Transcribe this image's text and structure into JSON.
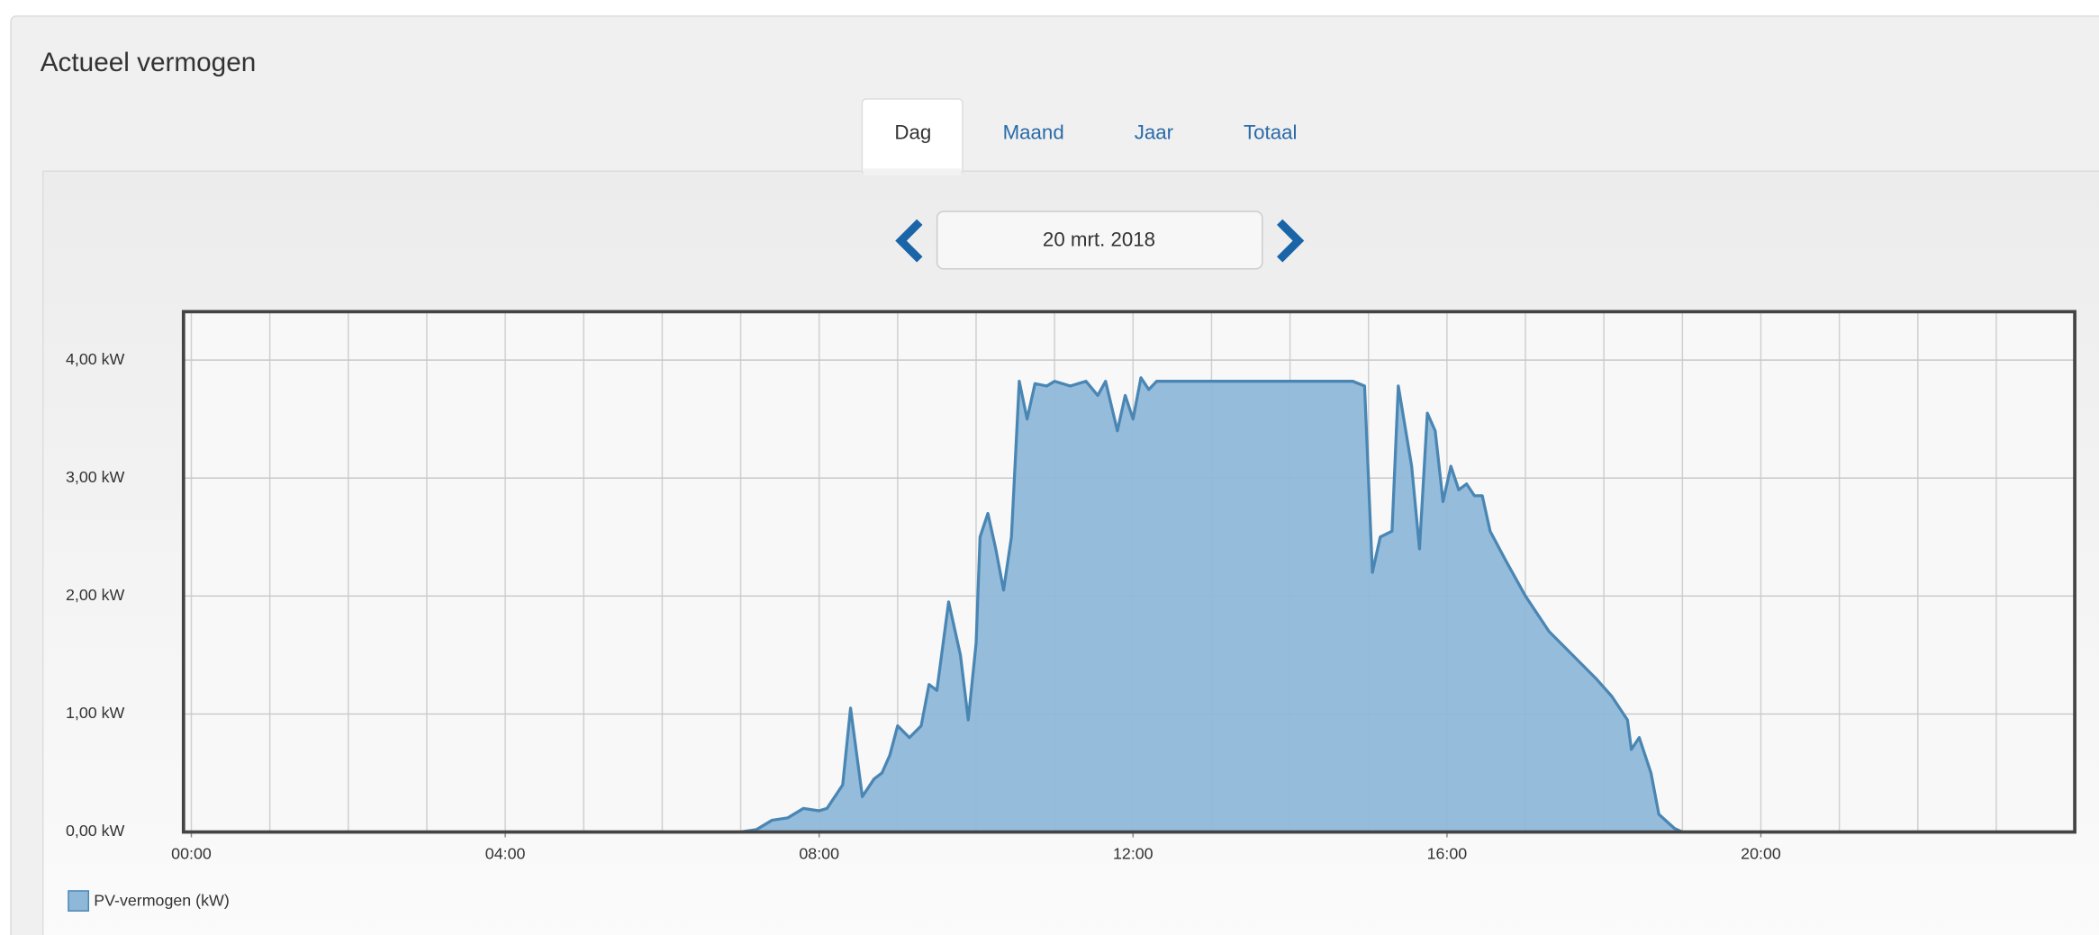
{
  "tabs": [
    "Dag",
    "Maand",
    "Jaar",
    "Totaal"
  ],
  "date": "20 mrt. 2018",
  "chart_data": {
    "type": "area",
    "title": "Actueel vermogen",
    "x": [
      0,
      7.0,
      7.2,
      7.4,
      7.6,
      7.8,
      8.0,
      8.1,
      8.3,
      8.4,
      8.55,
      8.7,
      8.8,
      8.9,
      9.0,
      9.15,
      9.3,
      9.4,
      9.5,
      9.65,
      9.8,
      9.9,
      10.0,
      10.05,
      10.15,
      10.25,
      10.35,
      10.45,
      10.55,
      10.65,
      10.75,
      10.9,
      11.0,
      11.2,
      11.4,
      11.55,
      11.65,
      11.8,
      11.9,
      12.0,
      12.1,
      12.2,
      12.3,
      12.6,
      13.0,
      13.5,
      14.0,
      14.5,
      14.8,
      14.95,
      15.05,
      15.15,
      15.3,
      15.38,
      15.55,
      15.65,
      15.75,
      15.85,
      15.95,
      16.05,
      16.15,
      16.25,
      16.35,
      16.45,
      16.55,
      16.75,
      17.0,
      17.3,
      17.6,
      17.9,
      18.1,
      18.3,
      18.35,
      18.45,
      18.6,
      18.7,
      18.9,
      19.0,
      24.0
    ],
    "series": [
      {
        "name": "PV-vermogen (kW)",
        "color": "#8fb8d8",
        "values": [
          0,
          0,
          0.02,
          0.1,
          0.12,
          0.2,
          0.18,
          0.2,
          0.4,
          1.05,
          0.3,
          0.45,
          0.5,
          0.65,
          0.9,
          0.8,
          0.9,
          1.25,
          1.2,
          1.95,
          1.5,
          0.95,
          1.6,
          2.5,
          2.7,
          2.4,
          2.05,
          2.5,
          3.82,
          3.5,
          3.8,
          3.78,
          3.82,
          3.78,
          3.82,
          3.7,
          3.82,
          3.4,
          3.7,
          3.5,
          3.85,
          3.75,
          3.82,
          3.82,
          3.82,
          3.82,
          3.82,
          3.82,
          3.82,
          3.78,
          2.2,
          2.5,
          2.55,
          3.78,
          3.1,
          2.4,
          3.55,
          3.4,
          2.8,
          3.1,
          2.9,
          2.95,
          2.85,
          2.85,
          2.55,
          2.3,
          2.0,
          1.7,
          1.5,
          1.3,
          1.15,
          0.95,
          0.7,
          0.8,
          0.5,
          0.15,
          0.03,
          0,
          0
        ]
      }
    ],
    "line_color": "#4a86b4",
    "xlim": [
      -0.1,
      24
    ],
    "ylim": [
      0,
      4.41
    ],
    "xticks": [
      {
        "value": 0,
        "label": "00:00"
      },
      {
        "value": 4,
        "label": "04:00"
      },
      {
        "value": 8,
        "label": "08:00"
      },
      {
        "value": 12,
        "label": "12:00"
      },
      {
        "value": 16,
        "label": "16:00"
      },
      {
        "value": 20,
        "label": "20:00"
      }
    ],
    "xgrid": [
      0,
      1,
      2,
      3,
      4,
      5,
      6,
      7,
      8,
      9,
      10,
      11,
      12,
      13,
      14,
      15,
      16,
      17,
      18,
      19,
      20,
      21,
      22,
      23
    ],
    "yticks": [
      {
        "value": 0,
        "label": "0,00 kW"
      },
      {
        "value": 1,
        "label": "1,00 kW"
      },
      {
        "value": 2,
        "label": "2,00 kW"
      },
      {
        "value": 3,
        "label": "3,00 kW"
      },
      {
        "value": 4,
        "label": "4,00 kW"
      }
    ],
    "grid": true
  }
}
